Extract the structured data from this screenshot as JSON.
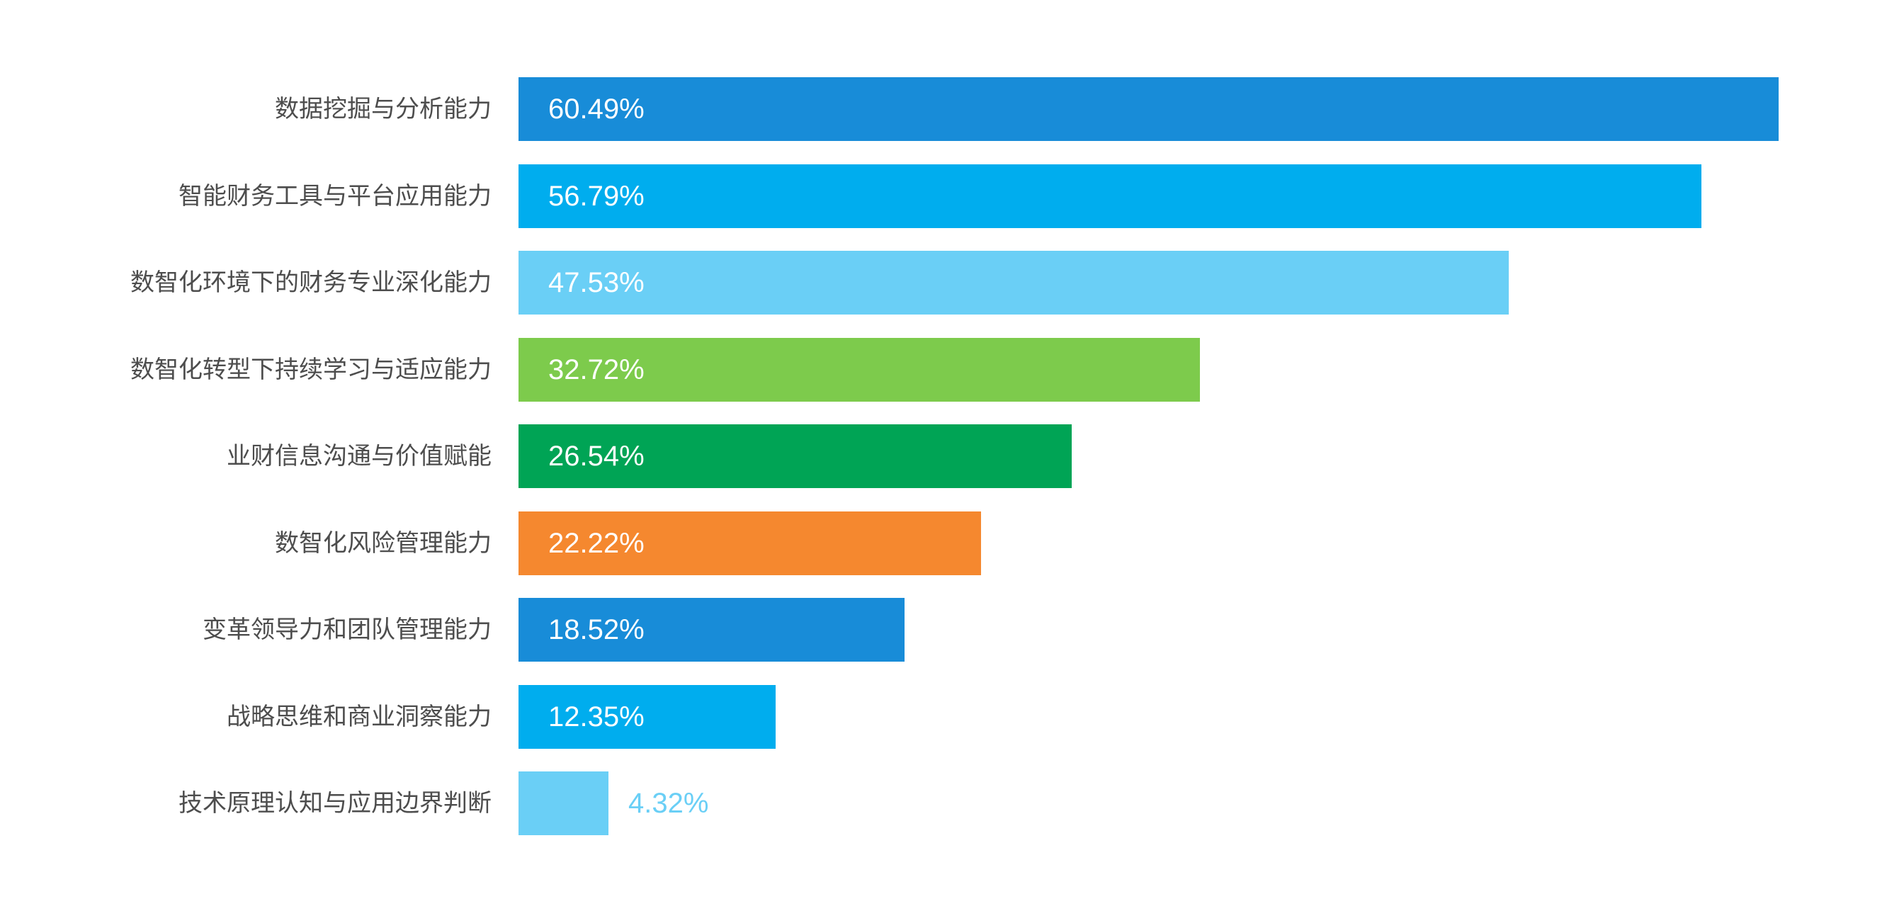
{
  "chart_data": {
    "type": "bar",
    "orientation": "horizontal",
    "title": "",
    "xlabel": "",
    "ylabel": "",
    "grid": false,
    "legend": false,
    "xlim": [
      0,
      66.5
    ],
    "categories": [
      "数据挖掘与分析能力",
      "智能财务工具与平台应用能力",
      "数智化环境下的财务专业深化能力",
      "数智化转型下持续学习与适应能力",
      "业财信息沟通与价值赋能",
      "数智化风险管理能力",
      "变革领导力和团队管理能力",
      "战略思维和商业洞察能力",
      "技术原理认知与应用边界判断"
    ],
    "values": [
      60.49,
      56.79,
      47.53,
      32.72,
      26.54,
      22.22,
      18.52,
      12.35,
      4.32
    ],
    "value_labels": [
      "60.49%",
      "56.79%",
      "47.53%",
      "32.72%",
      "26.54%",
      "22.22%",
      "18.52%",
      "12.35%",
      "4.32%"
    ],
    "bar_colors": [
      "#188CD8",
      "#00ADEE",
      "#6ACFF6",
      "#7DCB4C",
      "#00A455",
      "#F5882F",
      "#188CD8",
      "#00ADEE",
      "#6ACFF6"
    ],
    "value_label_position": [
      "inside",
      "inside",
      "inside",
      "inside",
      "inside",
      "inside",
      "inside",
      "inside",
      "outside"
    ],
    "colors": {
      "category_label_text": "#4d4d4d",
      "value_label_inside_text": "#ffffff",
      "background": "#ffffff"
    }
  }
}
